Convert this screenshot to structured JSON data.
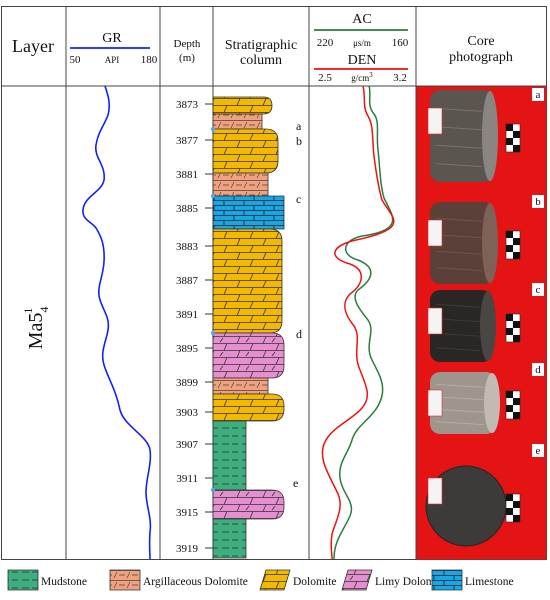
{
  "header": {
    "layer": "Layer",
    "gr": {
      "title": "GR",
      "min": "50",
      "unit": "API",
      "max": "180"
    },
    "depth": {
      "line1": "Depth",
      "line2": "(m)"
    },
    "strat": {
      "line1": "Stratigraphic",
      "line2": "column"
    },
    "ac": {
      "title": "AC",
      "min": "220",
      "unit": "μs/m",
      "max": "160"
    },
    "den": {
      "title": "DEN",
      "min": "2.5",
      "unit": "g/cm",
      "unit_sup": "3",
      "max": "3.2"
    },
    "core": {
      "line1": "Core",
      "line2": "photograph"
    }
  },
  "layer_label": {
    "main": "Ma5",
    "sup": "1",
    "sub": "4"
  },
  "depth_ticks": [
    "3873",
    "3877",
    "3881",
    "3885",
    "3883",
    "3887",
    "3891",
    "3895",
    "3899",
    "3903",
    "3907",
    "3911",
    "3915",
    "3919"
  ],
  "sample_labels": [
    "a",
    "b",
    "c",
    "d",
    "e"
  ],
  "strata": [
    {
      "lith": "dolomite",
      "shape": "r"
    },
    {
      "lith": "argillaceous",
      "shape": "s"
    },
    {
      "lith": "dolomite",
      "shape": "r"
    },
    {
      "lith": "argillaceous",
      "shape": "s"
    },
    {
      "lith": "limestone",
      "shape": "f"
    },
    {
      "lith": "dolomite",
      "shape": "r"
    },
    {
      "lith": "limy",
      "shape": "r"
    },
    {
      "lith": "argillaceous",
      "shape": "s"
    },
    {
      "lith": "dolomite",
      "shape": "r"
    },
    {
      "lith": "mudstone",
      "shape": "s"
    },
    {
      "lith": "limy",
      "shape": "r"
    },
    {
      "lith": "mudstone",
      "shape": "s"
    }
  ],
  "photos": [
    {
      "label": "a",
      "rock": "dark-gray-core"
    },
    {
      "label": "b",
      "rock": "brown-core"
    },
    {
      "label": "c",
      "rock": "black-core"
    },
    {
      "label": "d",
      "rock": "light-gray-core"
    },
    {
      "label": "e",
      "rock": "core-cross-section"
    }
  ],
  "legend": [
    {
      "key": "mudstone",
      "label": "Mudstone"
    },
    {
      "key": "argillaceous",
      "label": "Argillaceous Dolomite"
    },
    {
      "key": "dolomite",
      "label": "Dolomite"
    },
    {
      "key": "limy",
      "label": "Limy Dolomite"
    },
    {
      "key": "limestone",
      "label": "Limestone"
    }
  ],
  "colors": {
    "dolomite": "#f3b800",
    "argillaceous": "#f2a17e",
    "limestone": "#1aa6e0",
    "limy": "#e68fd0",
    "mudstone": "#3fae7e",
    "gr_curve": "#1020ff",
    "ac_curve": "#2a7d3c",
    "den_curve": "#ee1111",
    "photo_bg": "#e41414"
  }
}
